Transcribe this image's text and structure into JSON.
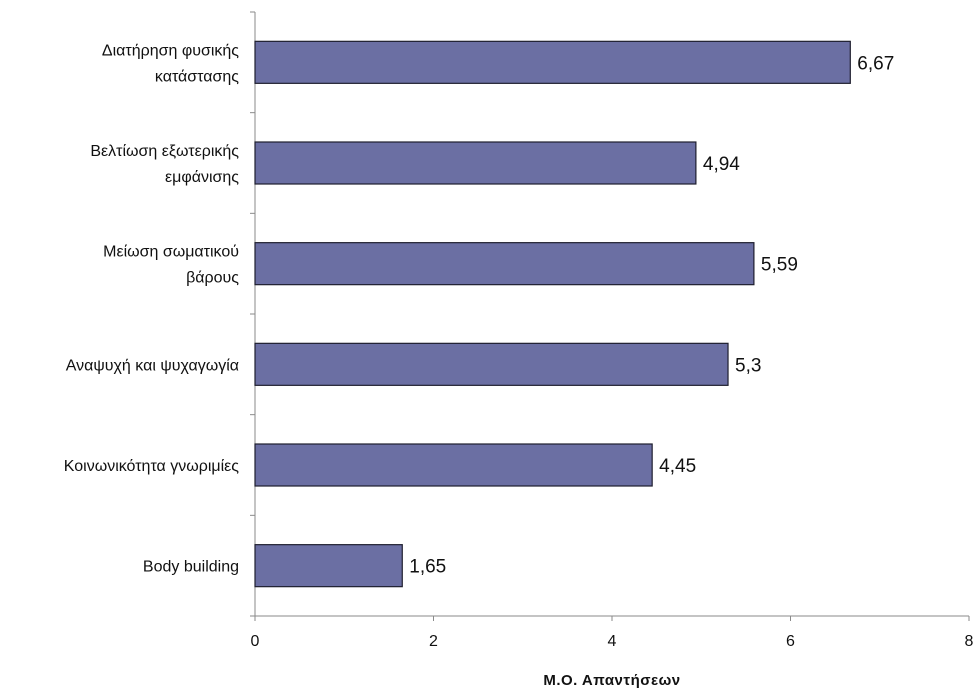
{
  "chart_data": {
    "type": "bar",
    "orientation": "horizontal",
    "categories": [
      [
        "Διατήρηση φυσικής",
        "κατάστασης"
      ],
      [
        "Βελτίωση εξωτερικής",
        "εμφάνισης"
      ],
      [
        "Μείωση σωματικού",
        "βάρους"
      ],
      [
        "Αναψυχή και ψυχαγωγία"
      ],
      [
        "Κοινωνικότητα γνωριμίες"
      ],
      [
        "Body building"
      ]
    ],
    "values": [
      6.67,
      4.94,
      5.59,
      5.3,
      4.45,
      1.65
    ],
    "value_labels": [
      "6,67",
      "4,94",
      "5,59",
      "5,3",
      "4,45",
      "1,65"
    ],
    "xlabel": "Μ.Ο. Απαντήσεων",
    "ylabel": "",
    "title": "",
    "xlim": [
      0,
      8
    ],
    "xticks": [
      0,
      2,
      4,
      6,
      8
    ],
    "xtick_labels": [
      "0",
      "2",
      "4",
      "6",
      "8"
    ],
    "grid": false,
    "legend": "none",
    "colors": {
      "bar_fill": "#6b6fa3",
      "bar_stroke": "#1e1e2e",
      "axis": "#8a8a8a"
    }
  }
}
